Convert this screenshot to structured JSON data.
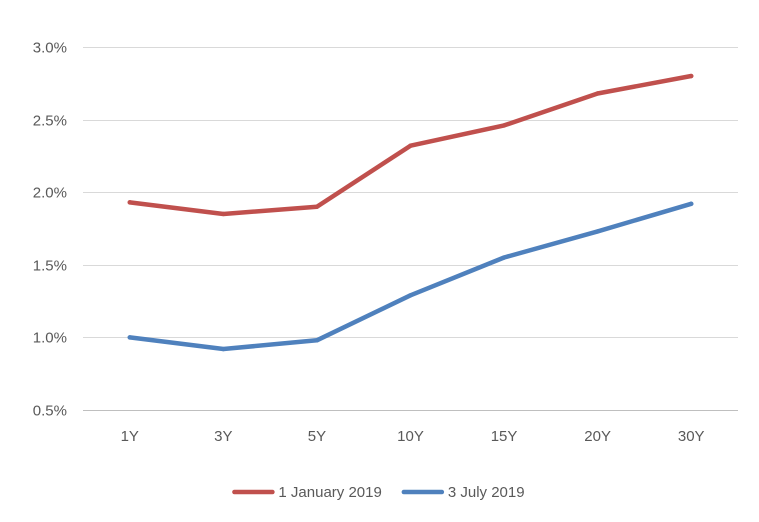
{
  "chart_data": {
    "type": "line",
    "title": "",
    "xlabel": "",
    "ylabel": "",
    "categories": [
      "1Y",
      "3Y",
      "5Y",
      "10Y",
      "15Y",
      "20Y",
      "30Y"
    ],
    "y_ticks": [
      "0.5%",
      "1.0%",
      "1.5%",
      "2.0%",
      "2.5%",
      "3.0%"
    ],
    "ylim": [
      0.5,
      3.0
    ],
    "y_unit": "%",
    "grid": true,
    "legend_position": "bottom",
    "series": [
      {
        "name": "1 January 2019",
        "color": "#c0504d",
        "values": [
          1.93,
          1.85,
          1.9,
          2.32,
          2.46,
          2.68,
          2.8
        ]
      },
      {
        "name": "3 July 2019",
        "color": "#4f81bd",
        "values": [
          1.0,
          0.92,
          0.98,
          1.29,
          1.55,
          1.73,
          1.92
        ]
      }
    ]
  }
}
